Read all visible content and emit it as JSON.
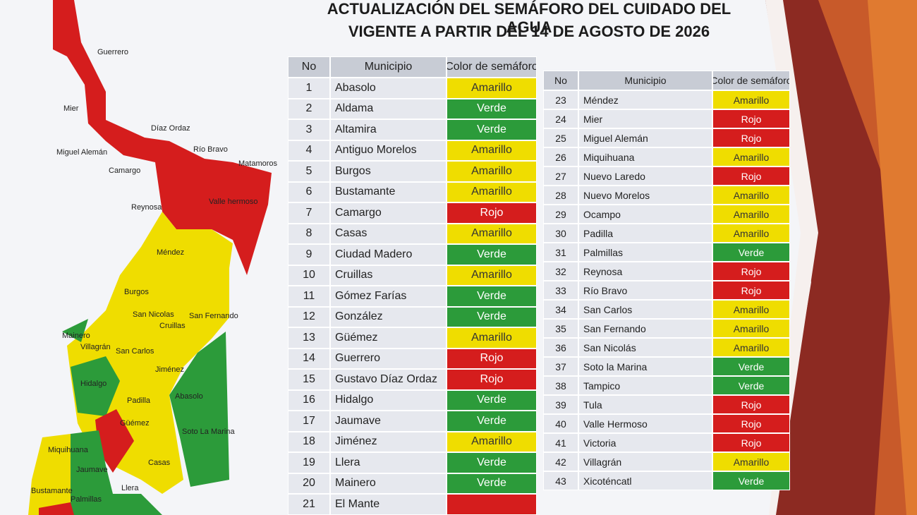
{
  "header": {
    "line1": "ACTUALIZACIÓN DEL SEMÁFORO DEL CUIDADO DEL AGUA",
    "line2": "VIGENTE A PARTIR DEL 14 DE AGOSTO DE 2026"
  },
  "colors": {
    "Amarillo": "#efdd00",
    "Verde": "#2c9b3a",
    "Rojo": "#d51d1d"
  },
  "table1": {
    "columns": [
      "No",
      "Municipio",
      "Color de semáforo"
    ],
    "rows": [
      {
        "no": "1",
        "municipio": "Abasolo",
        "color": "Amarillo"
      },
      {
        "no": "2",
        "municipio": "Aldama",
        "color": "Verde"
      },
      {
        "no": "3",
        "municipio": "Altamira",
        "color": "Verde"
      },
      {
        "no": "4",
        "municipio": "Antiguo Morelos",
        "color": "Amarillo"
      },
      {
        "no": "5",
        "municipio": "Burgos",
        "color": "Amarillo"
      },
      {
        "no": "6",
        "municipio": "Bustamante",
        "color": "Amarillo"
      },
      {
        "no": "7",
        "municipio": "Camargo",
        "color": "Rojo"
      },
      {
        "no": "8",
        "municipio": "Casas",
        "color": "Amarillo"
      },
      {
        "no": "9",
        "municipio": "Ciudad Madero",
        "color": "Verde"
      },
      {
        "no": "10",
        "municipio": "Cruillas",
        "color": "Amarillo"
      },
      {
        "no": "11",
        "municipio": "Gómez Farías",
        "color": "Verde"
      },
      {
        "no": "12",
        "municipio": "González",
        "color": "Verde"
      },
      {
        "no": "13",
        "municipio": "Güémez",
        "color": "Amarillo"
      },
      {
        "no": "14",
        "municipio": "Guerrero",
        "color": "Rojo"
      },
      {
        "no": "15",
        "municipio": "Gustavo Díaz Ordaz",
        "color": "Rojo"
      },
      {
        "no": "16",
        "municipio": "Hidalgo",
        "color": "Verde"
      },
      {
        "no": "17",
        "municipio": "Jaumave",
        "color": "Verde"
      },
      {
        "no": "18",
        "municipio": "Jiménez",
        "color": "Amarillo"
      },
      {
        "no": "19",
        "municipio": "Llera",
        "color": "Verde"
      },
      {
        "no": "20",
        "municipio": "Mainero",
        "color": "Verde"
      },
      {
        "no": "21",
        "municipio": "El Mante",
        "fill": "#d51d1d"
      }
    ]
  },
  "table2": {
    "columns": [
      "No",
      "Municipio",
      "Color de semáforo"
    ],
    "rows": [
      {
        "no": "23",
        "municipio": "Méndez",
        "color": "Amarillo"
      },
      {
        "no": "24",
        "municipio": "Mier",
        "color": "Rojo"
      },
      {
        "no": "25",
        "municipio": "Miguel Alemán",
        "color": "Rojo"
      },
      {
        "no": "26",
        "municipio": "Miquihuana",
        "color": "Amarillo"
      },
      {
        "no": "27",
        "municipio": "Nuevo Laredo",
        "color": "Rojo"
      },
      {
        "no": "28",
        "municipio": "Nuevo Morelos",
        "color": "Amarillo"
      },
      {
        "no": "29",
        "municipio": "Ocampo",
        "color": "Amarillo"
      },
      {
        "no": "30",
        "municipio": "Padilla",
        "color": "Amarillo"
      },
      {
        "no": "31",
        "municipio": "Palmillas",
        "color": "Verde"
      },
      {
        "no": "32",
        "municipio": "Reynosa",
        "color": "Rojo"
      },
      {
        "no": "33",
        "municipio": "Río Bravo",
        "color": "Rojo"
      },
      {
        "no": "34",
        "municipio": "San Carlos",
        "color": "Amarillo"
      },
      {
        "no": "35",
        "municipio": "San Fernando",
        "color": "Amarillo"
      },
      {
        "no": "36",
        "municipio": "San Nicolás",
        "color": "Amarillo"
      },
      {
        "no": "37",
        "municipio": "Soto la Marina",
        "color": "Verde"
      },
      {
        "no": "38",
        "municipio": "Tampico",
        "color": "Verde"
      },
      {
        "no": "39",
        "municipio": "Tula",
        "color": "Rojo"
      },
      {
        "no": "40",
        "municipio": "Valle Hermoso",
        "color": "Rojo"
      },
      {
        "no": "41",
        "municipio": "Victoria",
        "color": "Rojo"
      },
      {
        "no": "42",
        "municipio": "Villagrán",
        "color": "Amarillo"
      },
      {
        "no": "43",
        "municipio": "Xicoténcatl",
        "color": "Verde"
      }
    ]
  },
  "map": {
    "labels": [
      "Guerrero",
      "Mier",
      "Díaz Ordaz",
      "Miguel Alemán",
      "Camargo",
      "Río Bravo",
      "Matamoros",
      "Reynosa",
      "Valle hermoso",
      "Méndez",
      "Burgos",
      "San Nicolas",
      "Cruillas",
      "San Fernando",
      "Mainero",
      "Villagrán",
      "San Carlos",
      "Jiménez",
      "Hidalgo",
      "Abasolo",
      "Padilla",
      "Güémez",
      "Soto La Marina",
      "Miquihuana",
      "Jaumave",
      "Casas",
      "Bustamante",
      "Llera",
      "Palmillas"
    ]
  }
}
